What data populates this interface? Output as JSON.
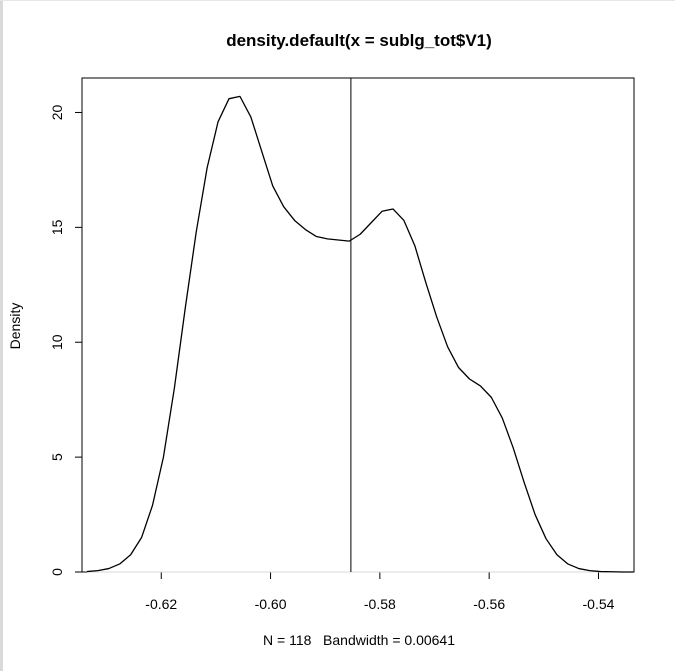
{
  "chart_data": {
    "type": "line",
    "title": "density.default(x = sublg_tot$V1)",
    "xlabel": "N = 118   Bandwidth = 0.00641",
    "ylabel": "Density",
    "xlim": [
      -0.6345,
      -0.5335
    ],
    "ylim": [
      0,
      21.5
    ],
    "xticks": [
      -0.62,
      -0.6,
      -0.58,
      -0.56,
      -0.54
    ],
    "xtick_labels": [
      "-0.62",
      "-0.60",
      "-0.58",
      "-0.56",
      "-0.54"
    ],
    "yticks": [
      0,
      5,
      10,
      15,
      20
    ],
    "ytick_labels": [
      "0",
      "5",
      "10",
      "15",
      "20"
    ],
    "vline_x": -0.5853,
    "grid": false,
    "line_color": "#000000",
    "baseline_color": "#d8d8d8",
    "series": [
      {
        "x": [
          -0.6336,
          -0.6316,
          -0.6296,
          -0.6276,
          -0.6256,
          -0.6236,
          -0.6216,
          -0.6196,
          -0.6176,
          -0.6156,
          -0.6136,
          -0.6116,
          -0.6096,
          -0.6076,
          -0.6056,
          -0.6036,
          -0.6016,
          -0.5996,
          -0.5976,
          -0.5956,
          -0.5936,
          -0.5916,
          -0.5896,
          -0.5876,
          -0.5856,
          -0.5836,
          -0.5816,
          -0.5796,
          -0.5776,
          -0.5756,
          -0.5736,
          -0.5716,
          -0.5696,
          -0.5676,
          -0.5656,
          -0.5636,
          -0.5616,
          -0.5596,
          -0.5576,
          -0.5556,
          -0.5536,
          -0.5516,
          -0.5496,
          -0.5476,
          -0.5456,
          -0.5436,
          -0.5416,
          -0.5396,
          -0.5376,
          -0.5356,
          -0.5336
        ],
        "y": [
          0.02,
          0.06,
          0.15,
          0.35,
          0.75,
          1.5,
          2.9,
          5.0,
          8.0,
          11.5,
          14.8,
          17.6,
          19.6,
          20.6,
          20.7,
          19.8,
          18.3,
          16.8,
          15.9,
          15.3,
          14.9,
          14.6,
          14.5,
          14.45,
          14.4,
          14.7,
          15.2,
          15.7,
          15.8,
          15.3,
          14.2,
          12.6,
          11.1,
          9.8,
          8.9,
          8.4,
          8.1,
          7.6,
          6.7,
          5.4,
          3.9,
          2.5,
          1.45,
          0.75,
          0.35,
          0.15,
          0.06,
          0.02,
          0.01,
          0.0,
          0.0
        ]
      }
    ]
  }
}
